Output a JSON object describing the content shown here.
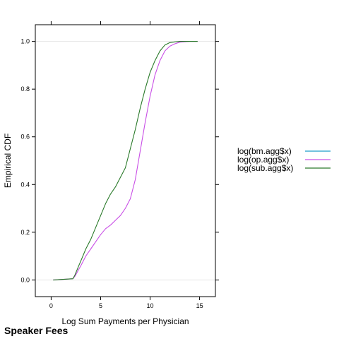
{
  "caption": "Speaker Fees",
  "chart_data": {
    "type": "line",
    "title": "",
    "xlabel": "Log Sum Payments per Physician",
    "ylabel": "Empirical CDF",
    "xlim": [
      -1.6,
      16.6
    ],
    "ylim": [
      -0.07,
      1.07
    ],
    "xticks": [
      0,
      5,
      10,
      15
    ],
    "xtick_labels": [
      "0",
      "5",
      "10",
      "15"
    ],
    "yticks": [
      0.0,
      0.2,
      0.4,
      0.6,
      0.8,
      1.0
    ],
    "ytick_labels": [
      "0.0",
      "0.2",
      "0.4",
      "0.6",
      "0.8",
      "1.0"
    ],
    "grid": "horizontal reference lines at 0 and 1",
    "legend_position": "right",
    "series": [
      {
        "name": "log(bm.agg$x)",
        "color": "#1f9ec9",
        "x": [],
        "y": []
      },
      {
        "name": "log(op.agg$x)",
        "color": "#c94fe6",
        "x": [
          0.2,
          2.2,
          2.4,
          3.0,
          3.5,
          4.0,
          4.5,
          5.0,
          5.5,
          6.0,
          6.5,
          7.0,
          7.5,
          8.0,
          8.5,
          9.0,
          9.5,
          10.0,
          10.5,
          11.0,
          11.5,
          12.0,
          12.5,
          13.0,
          14.0,
          14.8
        ],
        "y": [
          0.0,
          0.005,
          0.015,
          0.06,
          0.1,
          0.13,
          0.16,
          0.19,
          0.215,
          0.23,
          0.25,
          0.27,
          0.3,
          0.34,
          0.42,
          0.54,
          0.66,
          0.77,
          0.86,
          0.92,
          0.96,
          0.98,
          0.99,
          0.997,
          1.0,
          1.0
        ]
      },
      {
        "name": "log(sub.agg$x)",
        "color": "#2a7a2a",
        "x": [
          0.2,
          2.2,
          2.4,
          2.8,
          3.0,
          3.5,
          4.0,
          4.5,
          5.0,
          5.5,
          6.0,
          6.5,
          7.0,
          7.5,
          8.0,
          8.5,
          9.0,
          9.5,
          10.0,
          10.5,
          11.0,
          11.5,
          12.0,
          12.5,
          13.0,
          14.0,
          14.8
        ],
        "y": [
          0.0,
          0.005,
          0.02,
          0.06,
          0.08,
          0.13,
          0.17,
          0.22,
          0.27,
          0.32,
          0.36,
          0.39,
          0.43,
          0.47,
          0.55,
          0.63,
          0.72,
          0.8,
          0.87,
          0.92,
          0.96,
          0.985,
          0.995,
          0.998,
          1.0,
          1.0,
          1.0
        ]
      }
    ]
  }
}
